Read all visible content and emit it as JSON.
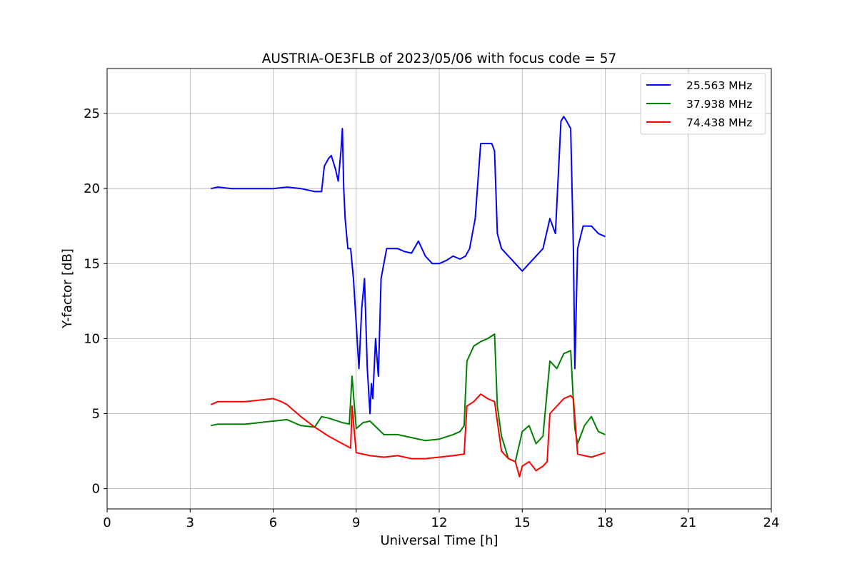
{
  "chart_data": {
    "type": "line",
    "title": "AUSTRIA-OE3FLB of 2023/05/06 with focus code = 57",
    "xlabel": "Universal Time [h]",
    "ylabel": "Y-factor [dB]",
    "xlim": [
      0,
      24
    ],
    "ylim": [
      -1.35,
      28
    ],
    "xticks": [
      0,
      3,
      6,
      9,
      12,
      15,
      18,
      21,
      24
    ],
    "yticks": [
      0,
      5,
      10,
      15,
      20,
      25
    ],
    "grid": true,
    "legend_position": "top-right",
    "series": [
      {
        "name": "25.563 MHz",
        "color": "#0000ff",
        "x": [
          3.75,
          4.0,
          4.5,
          5.0,
          5.5,
          6.0,
          6.5,
          7.0,
          7.5,
          7.75,
          7.85,
          8.0,
          8.1,
          8.25,
          8.35,
          8.45,
          8.5,
          8.55,
          8.6,
          8.7,
          8.8,
          8.9,
          9.0,
          9.1,
          9.2,
          9.3,
          9.4,
          9.5,
          9.55,
          9.6,
          9.7,
          9.8,
          9.9,
          10.0,
          10.1,
          10.25,
          10.5,
          10.75,
          11.0,
          11.25,
          11.5,
          11.75,
          12.0,
          12.25,
          12.5,
          12.75,
          12.95,
          13.1,
          13.3,
          13.5,
          13.7,
          13.9,
          14.0,
          14.1,
          14.25,
          14.5,
          14.75,
          15.0,
          15.25,
          15.5,
          15.75,
          16.0,
          16.2,
          16.4,
          16.5,
          16.6,
          16.75,
          16.85,
          16.9,
          17.0,
          17.2,
          17.5,
          17.75,
          18.0
        ],
        "y": [
          20.0,
          20.1,
          20.0,
          20.0,
          20.0,
          20.0,
          20.1,
          20.0,
          19.8,
          19.8,
          21.5,
          22.0,
          22.2,
          21.3,
          20.5,
          22.5,
          24.0,
          20.0,
          18.0,
          16.0,
          16.0,
          14.0,
          11.0,
          8.0,
          12.0,
          14.0,
          8.0,
          5.0,
          7.0,
          6.0,
          10.0,
          7.5,
          14.0,
          15.0,
          16.0,
          16.0,
          16.0,
          15.8,
          15.7,
          16.5,
          15.5,
          15.0,
          15.0,
          15.2,
          15.5,
          15.3,
          15.5,
          16.0,
          18.0,
          23.0,
          23.0,
          23.0,
          22.5,
          17.0,
          16.0,
          15.5,
          15.0,
          14.5,
          15.0,
          15.5,
          16.0,
          18.0,
          17.0,
          24.5,
          24.8,
          24.5,
          24.0,
          16.0,
          8.0,
          16.0,
          17.5,
          17.5,
          17.0,
          16.8
        ]
      },
      {
        "name": "37.938 MHz",
        "color": "#008000",
        "x": [
          3.75,
          4.0,
          5.0,
          6.0,
          6.5,
          7.0,
          7.5,
          7.75,
          8.0,
          8.5,
          8.75,
          8.85,
          9.0,
          9.25,
          9.5,
          10.0,
          10.5,
          11.0,
          11.5,
          12.0,
          12.5,
          12.75,
          12.9,
          13.0,
          13.25,
          13.5,
          13.75,
          14.0,
          14.1,
          14.25,
          14.5,
          14.75,
          15.0,
          15.25,
          15.5,
          15.75,
          16.0,
          16.25,
          16.5,
          16.75,
          16.9,
          17.0,
          17.25,
          17.5,
          17.75,
          18.0
        ],
        "y": [
          4.2,
          4.3,
          4.3,
          4.5,
          4.6,
          4.2,
          4.1,
          4.8,
          4.7,
          4.4,
          4.3,
          7.5,
          4.0,
          4.4,
          4.5,
          3.6,
          3.6,
          3.4,
          3.2,
          3.3,
          3.6,
          3.8,
          4.2,
          8.5,
          9.5,
          9.8,
          10.0,
          10.3,
          5.5,
          3.5,
          2.0,
          1.8,
          3.8,
          4.2,
          3.0,
          3.5,
          8.5,
          8.0,
          9.0,
          9.2,
          4.0,
          3.0,
          4.2,
          4.8,
          3.8,
          3.6
        ]
      },
      {
        "name": "74.438 MHz",
        "color": "#ff0000",
        "x": [
          3.75,
          4.0,
          5.0,
          6.0,
          6.3,
          6.5,
          7.0,
          7.5,
          8.0,
          8.5,
          8.8,
          8.85,
          9.0,
          9.5,
          10.0,
          10.5,
          11.0,
          11.5,
          12.0,
          12.5,
          12.9,
          13.0,
          13.25,
          13.5,
          13.75,
          14.0,
          14.25,
          14.5,
          14.75,
          14.9,
          15.0,
          15.25,
          15.5,
          15.75,
          15.9,
          16.0,
          16.25,
          16.5,
          16.75,
          16.85,
          17.0,
          17.25,
          17.5,
          18.0
        ],
        "y": [
          5.6,
          5.8,
          5.8,
          6.0,
          5.8,
          5.6,
          4.8,
          4.1,
          3.5,
          3.0,
          2.7,
          5.5,
          2.4,
          2.2,
          2.1,
          2.2,
          2.0,
          2.0,
          2.1,
          2.2,
          2.3,
          5.5,
          5.8,
          6.3,
          6.0,
          5.8,
          2.5,
          2.0,
          1.8,
          0.8,
          1.5,
          1.8,
          1.2,
          1.5,
          1.8,
          5.0,
          5.5,
          6.0,
          6.2,
          6.0,
          2.3,
          2.2,
          2.1,
          2.4
        ]
      }
    ]
  }
}
